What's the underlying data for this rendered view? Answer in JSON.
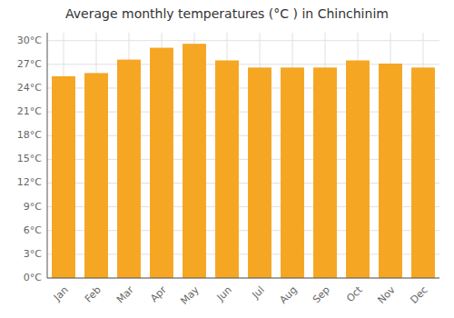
{
  "chart_data": {
    "type": "bar",
    "title": "Average monthly temperatures (°C ) in Chinchinim",
    "categories": [
      "Jan",
      "Feb",
      "Mar",
      "Apr",
      "May",
      "Jun",
      "Jul",
      "Aug",
      "Sep",
      "Oct",
      "Nov",
      "Dec"
    ],
    "values": [
      25.5,
      25.9,
      27.6,
      29.1,
      29.6,
      27.5,
      26.6,
      26.6,
      26.6,
      27.5,
      27.1,
      26.6
    ],
    "color": "#F5A623",
    "ylim": [
      0,
      31
    ],
    "yticks": [
      {
        "value": 0,
        "label": "0°C"
      },
      {
        "value": 3,
        "label": "3°C"
      },
      {
        "value": 6,
        "label": "6°C"
      },
      {
        "value": 9,
        "label": "9°C"
      },
      {
        "value": 12,
        "label": "12°C"
      },
      {
        "value": 15,
        "label": "15°C"
      },
      {
        "value": 18,
        "label": "18°C"
      },
      {
        "value": 21,
        "label": "21°C"
      },
      {
        "value": 24,
        "label": "24°C"
      },
      {
        "value": 27,
        "label": "27°C"
      },
      {
        "value": 30,
        "label": "30°C"
      }
    ],
    "grid": true
  }
}
